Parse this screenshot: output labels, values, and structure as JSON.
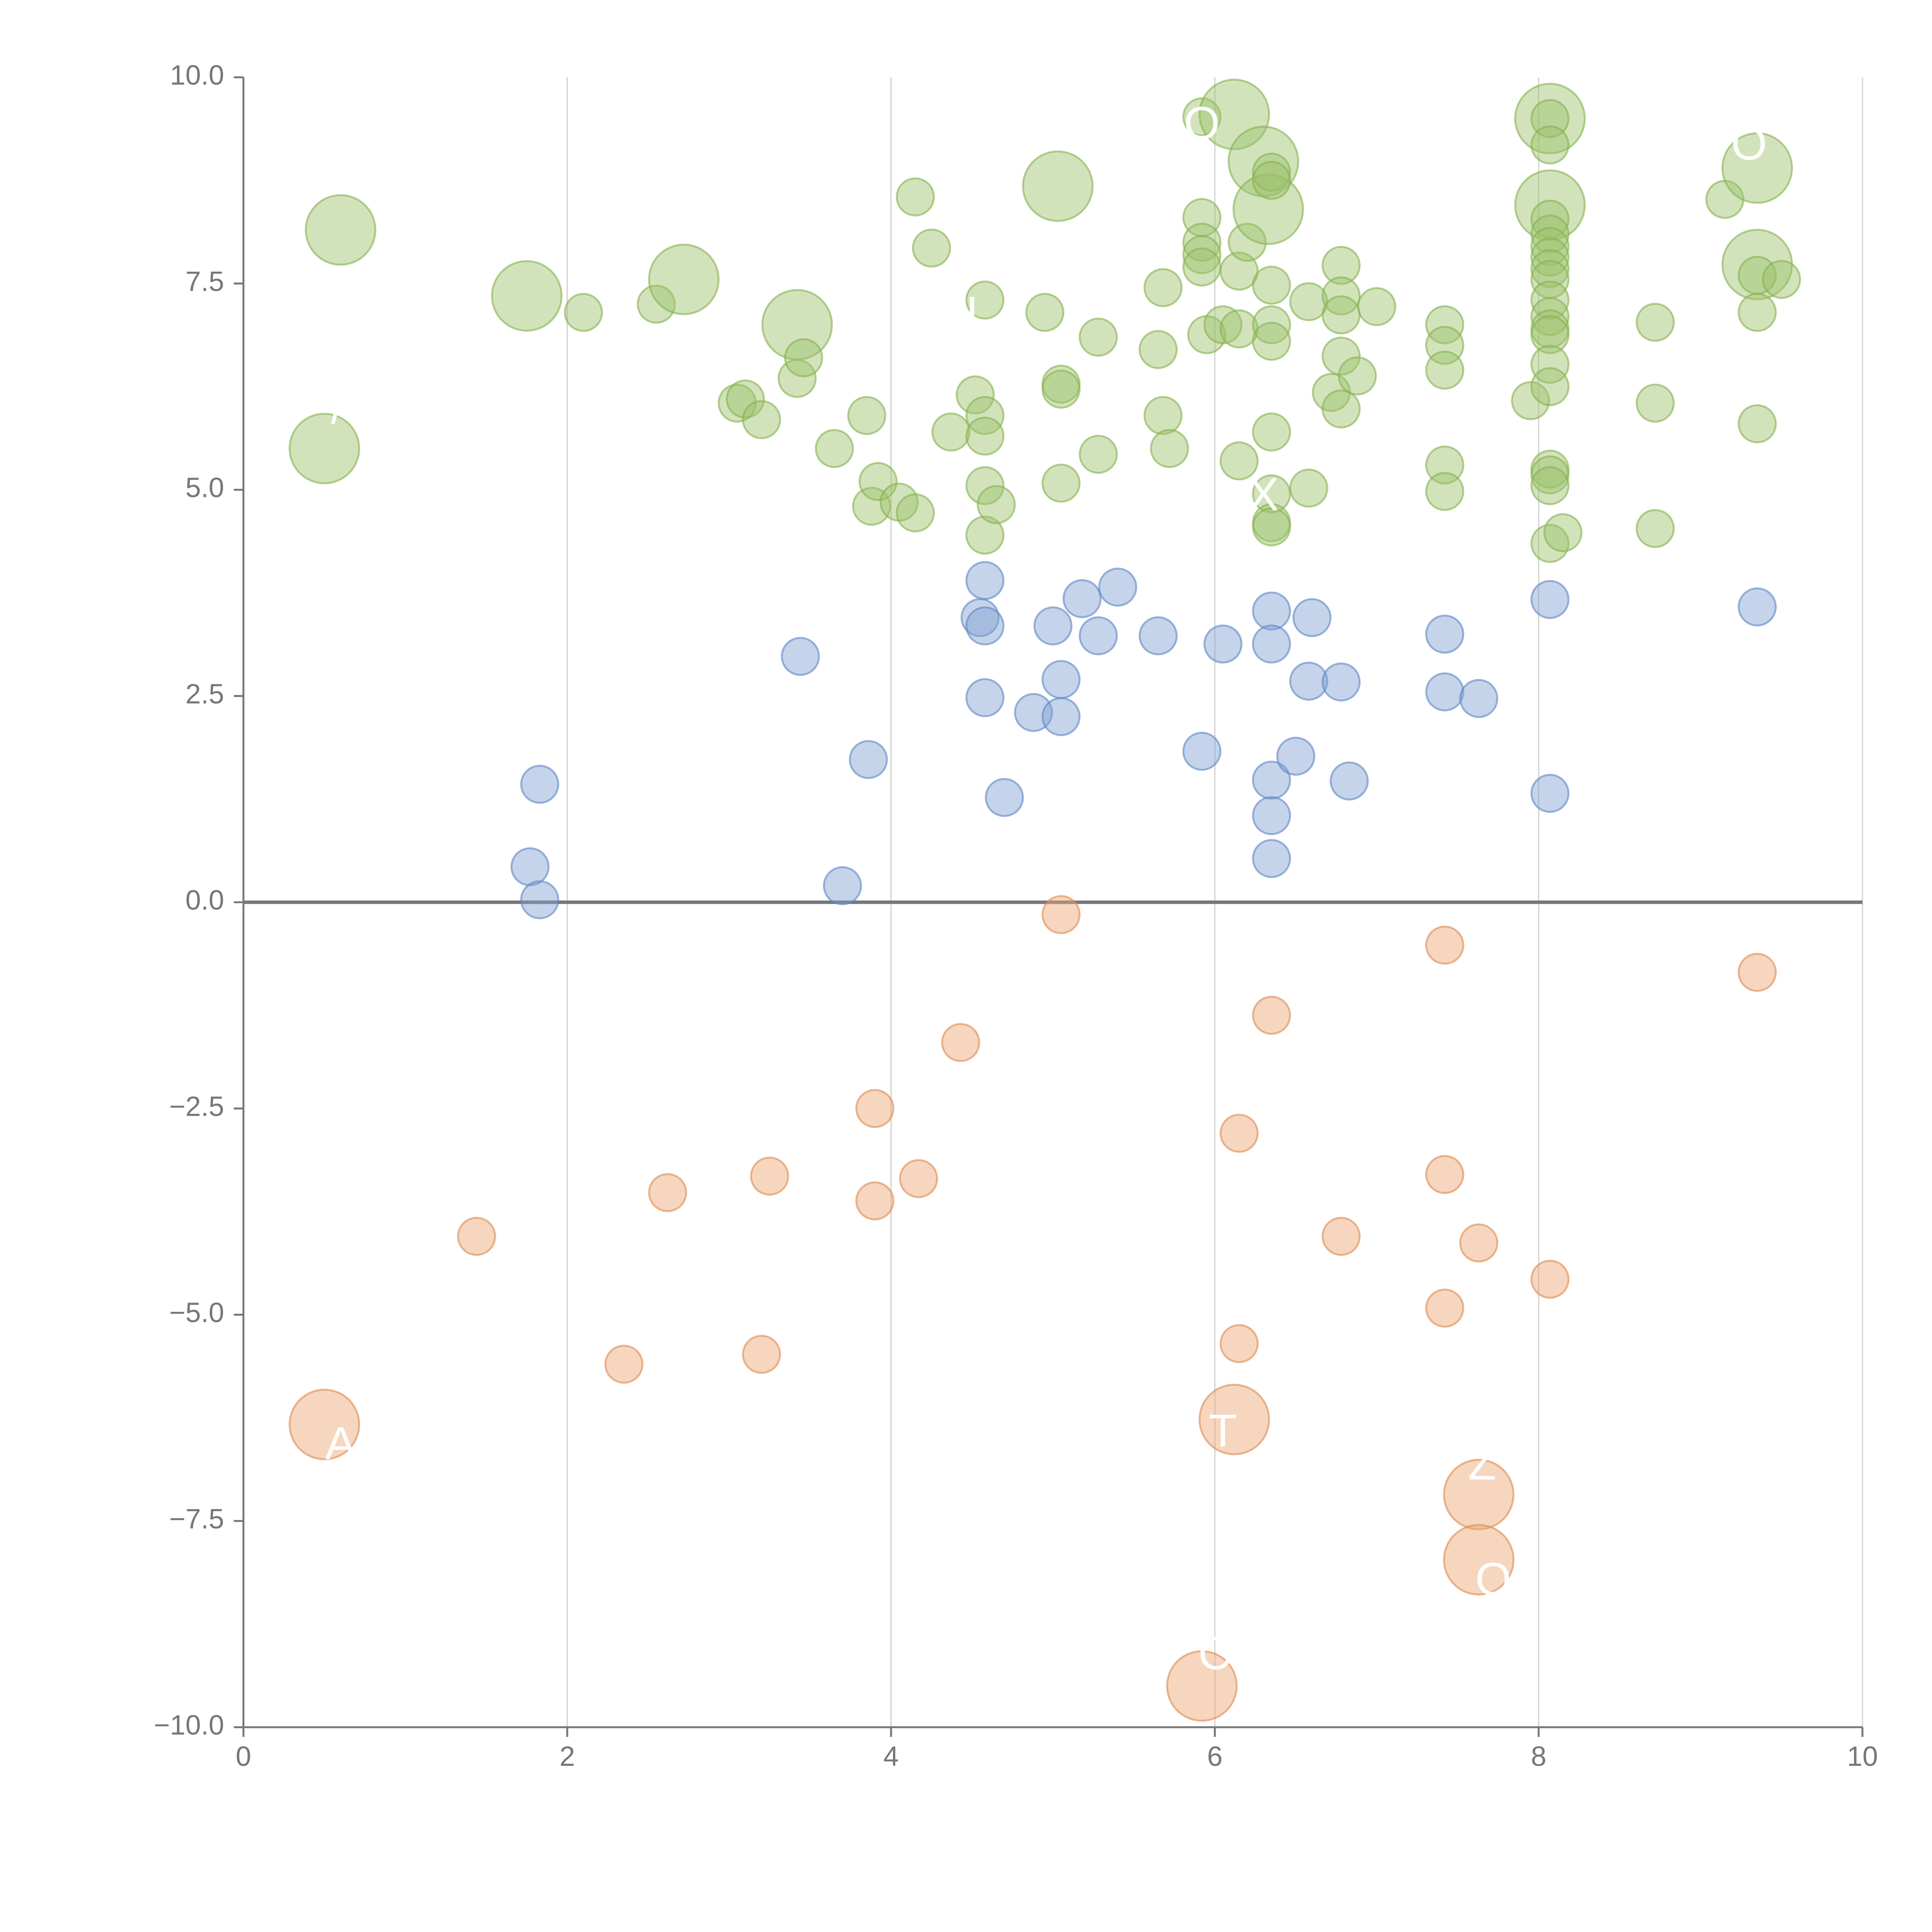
{
  "chart_data": {
    "type": "scatter",
    "title": "",
    "xlabel": "",
    "ylabel": "",
    "xlim": [
      0,
      10
    ],
    "ylim": [
      -10,
      10
    ],
    "x_ticks": [
      0,
      2,
      4,
      6,
      8,
      10
    ],
    "y_ticks": [
      -10,
      -7.5,
      -5,
      -2.5,
      0,
      2.5,
      5,
      7.5,
      10
    ],
    "x_tick_labels": [
      "0",
      "2",
      "4",
      "6",
      "8",
      "10"
    ],
    "y_tick_labels": [
      "−10.0",
      "−7.5",
      "−5.0",
      "−2.5",
      "0.0",
      "2.5",
      "5.0",
      "7.5",
      "10.0"
    ],
    "grid": "vertical only",
    "colors": {
      "green_fill": "#9cc26a",
      "green_stroke": "#86b04e",
      "blue_fill": "#7e9fd0",
      "blue_stroke": "#5f86c4",
      "orange_fill": "#eaa472",
      "orange_stroke": "#de8a50",
      "axis": "#777777",
      "grid": "#cfcfcf"
    },
    "series": [
      {
        "name": "green",
        "points": [
          {
            "x": 0.6,
            "y": 8.15,
            "size": "large"
          },
          {
            "x": 0.5,
            "y": 5.5,
            "size": "large"
          },
          {
            "x": 1.75,
            "y": 7.35,
            "size": "large"
          },
          {
            "x": 2.1,
            "y": 7.15,
            "size": "small"
          },
          {
            "x": 2.55,
            "y": 7.25,
            "size": "small"
          },
          {
            "x": 2.72,
            "y": 7.55,
            "size": "large"
          },
          {
            "x": 3.05,
            "y": 6.05,
            "size": "small"
          },
          {
            "x": 3.1,
            "y": 6.1,
            "size": "small"
          },
          {
            "x": 3.2,
            "y": 5.85,
            "size": "small"
          },
          {
            "x": 3.42,
            "y": 7.0,
            "size": "large"
          },
          {
            "x": 3.42,
            "y": 6.35,
            "size": "small"
          },
          {
            "x": 3.46,
            "y": 6.6,
            "size": "small"
          },
          {
            "x": 3.65,
            "y": 5.5,
            "size": "small"
          },
          {
            "x": 3.85,
            "y": 5.9,
            "size": "small"
          },
          {
            "x": 3.88,
            "y": 4.8,
            "size": "small"
          },
          {
            "x": 3.92,
            "y": 5.1,
            "size": "small"
          },
          {
            "x": 4.05,
            "y": 4.85,
            "size": "small"
          },
          {
            "x": 4.15,
            "y": 4.72,
            "size": "small"
          },
          {
            "x": 4.15,
            "y": 8.55,
            "size": "small"
          },
          {
            "x": 4.25,
            "y": 7.93,
            "size": "small"
          },
          {
            "x": 4.37,
            "y": 5.7,
            "size": "small"
          },
          {
            "x": 4.52,
            "y": 6.15,
            "size": "small"
          },
          {
            "x": 4.58,
            "y": 7.3,
            "size": "small"
          },
          {
            "x": 4.58,
            "y": 5.9,
            "size": "small"
          },
          {
            "x": 4.58,
            "y": 5.65,
            "size": "small"
          },
          {
            "x": 4.58,
            "y": 5.05,
            "size": "small"
          },
          {
            "x": 4.58,
            "y": 4.45,
            "size": "small"
          },
          {
            "x": 4.65,
            "y": 4.82,
            "size": "small"
          },
          {
            "x": 4.95,
            "y": 7.15,
            "size": "small"
          },
          {
            "x": 5.03,
            "y": 8.68,
            "size": "large"
          },
          {
            "x": 5.05,
            "y": 6.28,
            "size": "small"
          },
          {
            "x": 5.05,
            "y": 6.22,
            "size": "small"
          },
          {
            "x": 5.05,
            "y": 5.08,
            "size": "small"
          },
          {
            "x": 5.28,
            "y": 6.85,
            "size": "small"
          },
          {
            "x": 5.28,
            "y": 5.43,
            "size": "small"
          },
          {
            "x": 5.65,
            "y": 6.7,
            "size": "small"
          },
          {
            "x": 5.68,
            "y": 7.45,
            "size": "small"
          },
          {
            "x": 5.68,
            "y": 5.9,
            "size": "small"
          },
          {
            "x": 5.72,
            "y": 5.5,
            "size": "small"
          },
          {
            "x": 5.92,
            "y": 9.52,
            "size": "small"
          },
          {
            "x": 5.92,
            "y": 8.3,
            "size": "small"
          },
          {
            "x": 5.92,
            "y": 8.0,
            "size": "small"
          },
          {
            "x": 5.92,
            "y": 7.85,
            "size": "small"
          },
          {
            "x": 5.92,
            "y": 7.7,
            "size": "small"
          },
          {
            "x": 5.95,
            "y": 6.88,
            "size": "small"
          },
          {
            "x": 6.05,
            "y": 7.0,
            "size": "small"
          },
          {
            "x": 6.12,
            "y": 9.55,
            "size": "large"
          },
          {
            "x": 6.15,
            "y": 7.65,
            "size": "small"
          },
          {
            "x": 6.15,
            "y": 6.95,
            "size": "small"
          },
          {
            "x": 6.15,
            "y": 5.35,
            "size": "small"
          },
          {
            "x": 6.2,
            "y": 8.0,
            "size": "small"
          },
          {
            "x": 6.3,
            "y": 8.98,
            "size": "large"
          },
          {
            "x": 6.33,
            "y": 8.4,
            "size": "large"
          },
          {
            "x": 6.35,
            "y": 8.85,
            "size": "small"
          },
          {
            "x": 6.35,
            "y": 8.75,
            "size": "small"
          },
          {
            "x": 6.35,
            "y": 7.48,
            "size": "small"
          },
          {
            "x": 6.35,
            "y": 7.0,
            "size": "small"
          },
          {
            "x": 6.35,
            "y": 6.8,
            "size": "small"
          },
          {
            "x": 6.35,
            "y": 5.7,
            "size": "small"
          },
          {
            "x": 6.35,
            "y": 4.95,
            "size": "small"
          },
          {
            "x": 6.35,
            "y": 4.6,
            "size": "small"
          },
          {
            "x": 6.35,
            "y": 4.55,
            "size": "small"
          },
          {
            "x": 6.58,
            "y": 7.28,
            "size": "small"
          },
          {
            "x": 6.58,
            "y": 5.02,
            "size": "small"
          },
          {
            "x": 6.72,
            "y": 6.18,
            "size": "small"
          },
          {
            "x": 6.78,
            "y": 7.72,
            "size": "small"
          },
          {
            "x": 6.78,
            "y": 7.35,
            "size": "small"
          },
          {
            "x": 6.78,
            "y": 7.12,
            "size": "small"
          },
          {
            "x": 6.78,
            "y": 6.62,
            "size": "small"
          },
          {
            "x": 6.78,
            "y": 5.98,
            "size": "small"
          },
          {
            "x": 6.88,
            "y": 6.38,
            "size": "small"
          },
          {
            "x": 7.0,
            "y": 7.22,
            "size": "small"
          },
          {
            "x": 7.42,
            "y": 7.0,
            "size": "small"
          },
          {
            "x": 7.42,
            "y": 6.75,
            "size": "small"
          },
          {
            "x": 7.42,
            "y": 6.45,
            "size": "small"
          },
          {
            "x": 7.42,
            "y": 5.3,
            "size": "small"
          },
          {
            "x": 7.42,
            "y": 4.98,
            "size": "small"
          },
          {
            "x": 7.95,
            "y": 6.08,
            "size": "small"
          },
          {
            "x": 8.07,
            "y": 9.5,
            "size": "large"
          },
          {
            "x": 8.07,
            "y": 9.5,
            "size": "small"
          },
          {
            "x": 8.07,
            "y": 9.18,
            "size": "small"
          },
          {
            "x": 8.07,
            "y": 8.45,
            "size": "large"
          },
          {
            "x": 8.07,
            "y": 8.28,
            "size": "small"
          },
          {
            "x": 8.07,
            "y": 8.1,
            "size": "small"
          },
          {
            "x": 8.07,
            "y": 7.95,
            "size": "small"
          },
          {
            "x": 8.07,
            "y": 7.82,
            "size": "small"
          },
          {
            "x": 8.07,
            "y": 7.68,
            "size": "small"
          },
          {
            "x": 8.07,
            "y": 7.55,
            "size": "small"
          },
          {
            "x": 8.07,
            "y": 7.3,
            "size": "small"
          },
          {
            "x": 8.07,
            "y": 7.1,
            "size": "small"
          },
          {
            "x": 8.07,
            "y": 6.95,
            "size": "small"
          },
          {
            "x": 8.07,
            "y": 6.88,
            "size": "small"
          },
          {
            "x": 8.07,
            "y": 6.52,
            "size": "small"
          },
          {
            "x": 8.07,
            "y": 6.25,
            "size": "small"
          },
          {
            "x": 8.07,
            "y": 5.25,
            "size": "small"
          },
          {
            "x": 8.07,
            "y": 5.18,
            "size": "small"
          },
          {
            "x": 8.07,
            "y": 5.05,
            "size": "small"
          },
          {
            "x": 8.07,
            "y": 4.35,
            "size": "small"
          },
          {
            "x": 8.15,
            "y": 4.48,
            "size": "small"
          },
          {
            "x": 8.72,
            "y": 7.03,
            "size": "small"
          },
          {
            "x": 8.72,
            "y": 6.05,
            "size": "small"
          },
          {
            "x": 8.72,
            "y": 4.53,
            "size": "small"
          },
          {
            "x": 9.15,
            "y": 8.52,
            "size": "small"
          },
          {
            "x": 9.35,
            "y": 8.9,
            "size": "large"
          },
          {
            "x": 9.35,
            "y": 7.73,
            "size": "large"
          },
          {
            "x": 9.35,
            "y": 7.6,
            "size": "small"
          },
          {
            "x": 9.35,
            "y": 7.15,
            "size": "small"
          },
          {
            "x": 9.35,
            "y": 5.8,
            "size": "small"
          },
          {
            "x": 9.5,
            "y": 7.55,
            "size": "small"
          }
        ]
      },
      {
        "name": "blue",
        "points": [
          {
            "x": 1.83,
            "y": 1.43,
            "size": "small"
          },
          {
            "x": 1.77,
            "y": 0.43,
            "size": "small"
          },
          {
            "x": 1.83,
            "y": 0.03,
            "size": "small"
          },
          {
            "x": 3.44,
            "y": 2.98,
            "size": "small"
          },
          {
            "x": 3.7,
            "y": 0.2,
            "size": "small"
          },
          {
            "x": 3.86,
            "y": 1.73,
            "size": "small"
          },
          {
            "x": 4.58,
            "y": 3.9,
            "size": "small"
          },
          {
            "x": 4.55,
            "y": 3.45,
            "size": "small"
          },
          {
            "x": 4.58,
            "y": 3.35,
            "size": "small"
          },
          {
            "x": 4.58,
            "y": 2.48,
            "size": "small"
          },
          {
            "x": 4.7,
            "y": 1.27,
            "size": "small"
          },
          {
            "x": 4.88,
            "y": 2.3,
            "size": "small"
          },
          {
            "x": 5.0,
            "y": 3.35,
            "size": "small"
          },
          {
            "x": 5.05,
            "y": 2.7,
            "size": "small"
          },
          {
            "x": 5.05,
            "y": 2.25,
            "size": "small"
          },
          {
            "x": 5.18,
            "y": 3.68,
            "size": "small"
          },
          {
            "x": 5.28,
            "y": 3.23,
            "size": "small"
          },
          {
            "x": 5.4,
            "y": 3.82,
            "size": "small"
          },
          {
            "x": 5.65,
            "y": 3.23,
            "size": "small"
          },
          {
            "x": 5.92,
            "y": 1.83,
            "size": "small"
          },
          {
            "x": 6.05,
            "y": 3.13,
            "size": "small"
          },
          {
            "x": 6.35,
            "y": 3.53,
            "size": "small"
          },
          {
            "x": 6.35,
            "y": 3.13,
            "size": "small"
          },
          {
            "x": 6.35,
            "y": 1.48,
            "size": "small"
          },
          {
            "x": 6.35,
            "y": 1.05,
            "size": "small"
          },
          {
            "x": 6.35,
            "y": 0.53,
            "size": "small"
          },
          {
            "x": 6.5,
            "y": 1.77,
            "size": "small"
          },
          {
            "x": 6.6,
            "y": 3.45,
            "size": "small"
          },
          {
            "x": 6.58,
            "y": 2.68,
            "size": "small"
          },
          {
            "x": 6.78,
            "y": 2.67,
            "size": "small"
          },
          {
            "x": 6.83,
            "y": 1.47,
            "size": "small"
          },
          {
            "x": 7.42,
            "y": 3.25,
            "size": "small"
          },
          {
            "x": 7.42,
            "y": 2.55,
            "size": "small"
          },
          {
            "x": 7.63,
            "y": 2.47,
            "size": "small"
          },
          {
            "x": 8.07,
            "y": 3.67,
            "size": "small"
          },
          {
            "x": 8.07,
            "y": 1.32,
            "size": "small"
          },
          {
            "x": 9.35,
            "y": 3.58,
            "size": "small"
          }
        ]
      },
      {
        "name": "orange",
        "points": [
          {
            "x": 5.05,
            "y": -0.15,
            "size": "small"
          },
          {
            "x": 7.42,
            "y": -0.52,
            "size": "small"
          },
          {
            "x": 9.35,
            "y": -0.85,
            "size": "small"
          },
          {
            "x": 6.35,
            "y": -1.37,
            "size": "small"
          },
          {
            "x": 4.43,
            "y": -1.7,
            "size": "small"
          },
          {
            "x": 3.9,
            "y": -2.5,
            "size": "small"
          },
          {
            "x": 6.15,
            "y": -2.8,
            "size": "small"
          },
          {
            "x": 3.25,
            "y": -3.32,
            "size": "small"
          },
          {
            "x": 4.17,
            "y": -3.35,
            "size": "small"
          },
          {
            "x": 7.42,
            "y": -3.3,
            "size": "small"
          },
          {
            "x": 2.62,
            "y": -3.52,
            "size": "small"
          },
          {
            "x": 3.9,
            "y": -3.62,
            "size": "small"
          },
          {
            "x": 1.44,
            "y": -4.05,
            "size": "small"
          },
          {
            "x": 6.78,
            "y": -4.05,
            "size": "small"
          },
          {
            "x": 7.63,
            "y": -4.13,
            "size": "small"
          },
          {
            "x": 8.07,
            "y": -4.57,
            "size": "small"
          },
          {
            "x": 7.42,
            "y": -4.92,
            "size": "small"
          },
          {
            "x": 6.15,
            "y": -5.35,
            "size": "small"
          },
          {
            "x": 2.35,
            "y": -5.6,
            "size": "small"
          },
          {
            "x": 3.2,
            "y": -5.48,
            "size": "small"
          },
          {
            "x": 0.5,
            "y": -6.33,
            "size": "large"
          },
          {
            "x": 6.12,
            "y": -6.27,
            "size": "large"
          },
          {
            "x": 7.63,
            "y": -7.18,
            "size": "large"
          },
          {
            "x": 7.63,
            "y": -7.97,
            "size": "large"
          },
          {
            "x": 5.92,
            "y": -9.5,
            "size": "large"
          }
        ]
      }
    ],
    "annotations": [
      {
        "text": "X",
        "x": 6.3,
        "y": 4.9
      },
      {
        "text": "A",
        "x": 0.6,
        "y": -6.6
      },
      {
        "text": "T",
        "x": 6.05,
        "y": -6.45
      },
      {
        "text": "Z",
        "x": 7.65,
        "y": -6.85
      },
      {
        "text": "O",
        "x": 7.72,
        "y": -8.25
      },
      {
        "text": "C",
        "x": 6.0,
        "y": -9.15
      },
      {
        "text": "O",
        "x": 9.3,
        "y": 9.15
      },
      {
        "text": "O",
        "x": 5.92,
        "y": 9.4
      },
      {
        "text": "I",
        "x": 4.5,
        "y": 7.1
      },
      {
        "text": "/",
        "x": 0.58,
        "y": 5.95
      }
    ]
  }
}
